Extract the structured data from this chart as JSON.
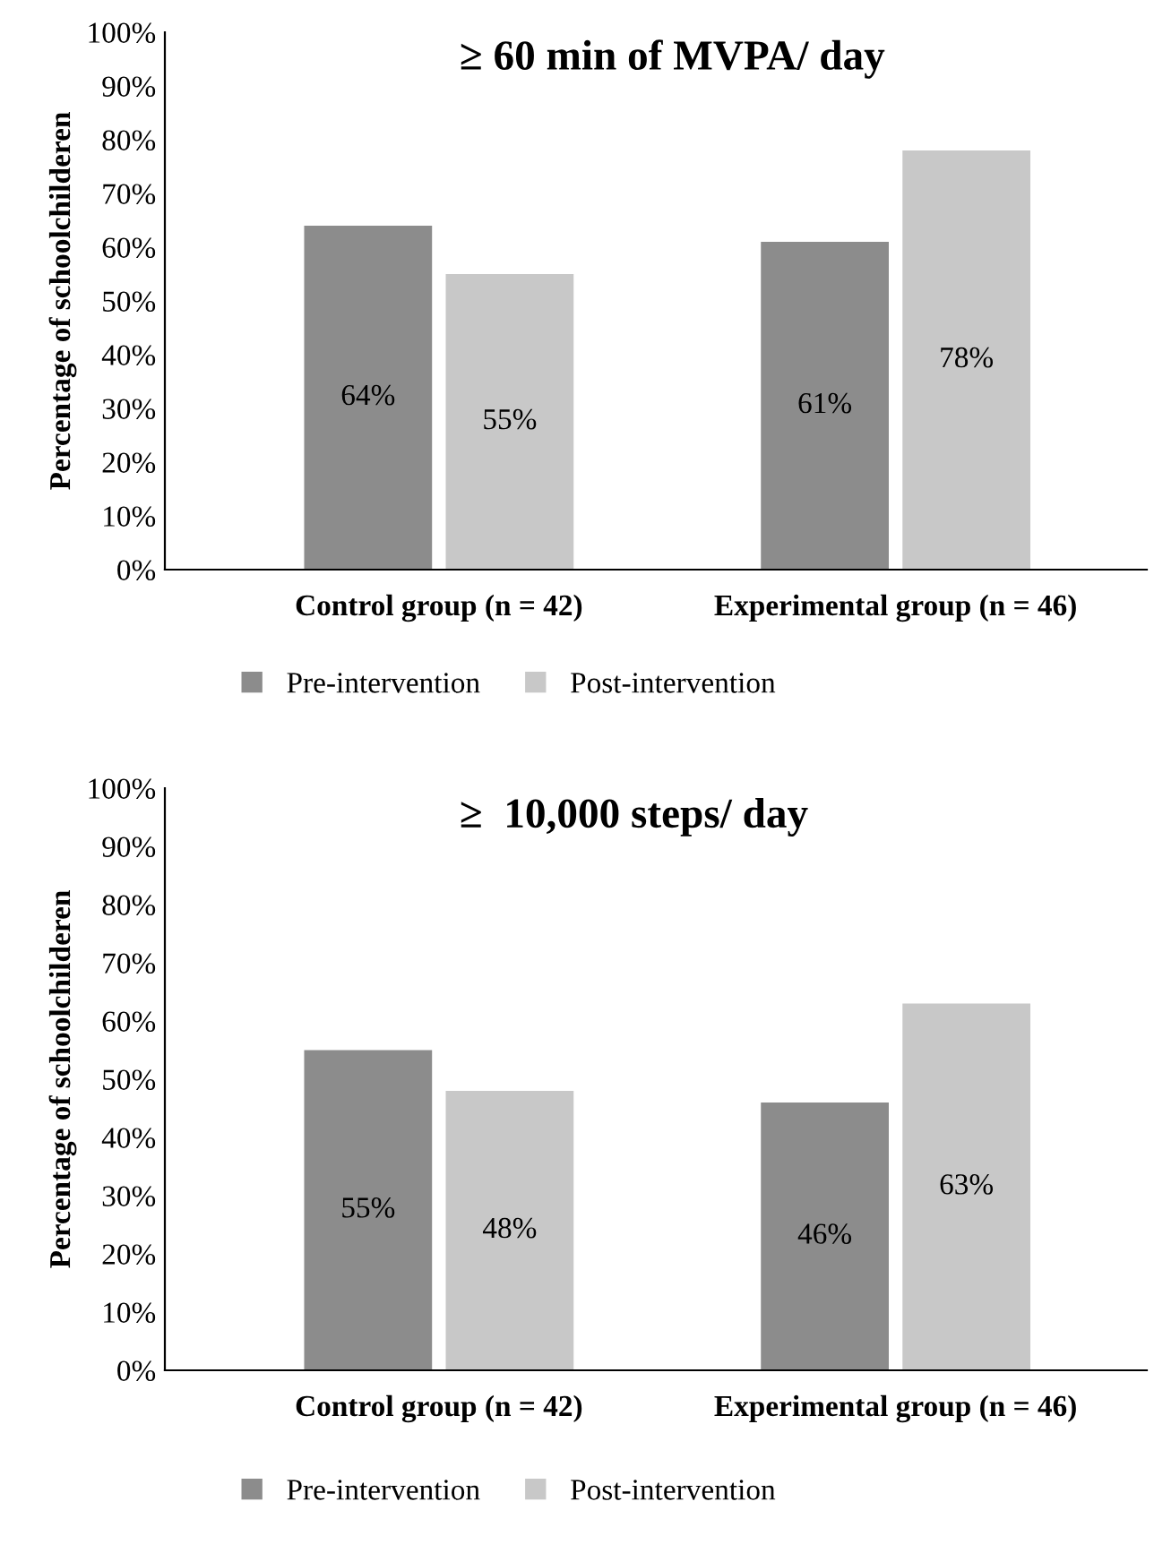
{
  "chart_data": [
    {
      "type": "bar",
      "title": "≥ 60 min of MVPA/ day",
      "ylabel": "Percentage of schoolchilderen",
      "categories": [
        "Control group (n = 42)",
        "Experimental group (n = 46)"
      ],
      "series": [
        {
          "name": "Pre-intervention",
          "color": "#8c8c8c",
          "values": [
            64,
            61
          ],
          "value_labels": [
            "64%",
            "61%"
          ]
        },
        {
          "name": "Post-intervention",
          "color": "#c8c8c8",
          "values": [
            55,
            78
          ],
          "value_labels": [
            "55%",
            "78%"
          ]
        }
      ],
      "ylim": [
        0,
        100
      ],
      "yticks": [
        {
          "value": 0,
          "label": "0%"
        },
        {
          "value": 10,
          "label": "10%"
        },
        {
          "value": 20,
          "label": "20%"
        },
        {
          "value": 30,
          "label": "30%"
        },
        {
          "value": 40,
          "label": "40%"
        },
        {
          "value": 50,
          "label": "50%"
        },
        {
          "value": 60,
          "label": "60%"
        },
        {
          "value": 70,
          "label": "70%"
        },
        {
          "value": 80,
          "label": "80%"
        },
        {
          "value": 90,
          "label": "90%"
        },
        {
          "value": 100,
          "label": "100%"
        }
      ],
      "grid": false,
      "legend": "bottom"
    },
    {
      "type": "bar",
      "title": "≥  10,000 steps/ day",
      "ylabel": "Percentage of schoolchilderen",
      "categories": [
        "Control group (n = 42)",
        "Experimental group (n = 46)"
      ],
      "series": [
        {
          "name": "Pre-intervention",
          "color": "#8c8c8c",
          "values": [
            55,
            46
          ],
          "value_labels": [
            "55%",
            "46%"
          ]
        },
        {
          "name": "Post-intervention",
          "color": "#c8c8c8",
          "values": [
            48,
            63
          ],
          "value_labels": [
            "48%",
            "63%"
          ]
        }
      ],
      "ylim": [
        0,
        100
      ],
      "yticks": [
        {
          "value": 0,
          "label": "0%"
        },
        {
          "value": 10,
          "label": "10%"
        },
        {
          "value": 20,
          "label": "20%"
        },
        {
          "value": 30,
          "label": "30%"
        },
        {
          "value": 40,
          "label": "40%"
        },
        {
          "value": 50,
          "label": "50%"
        },
        {
          "value": 60,
          "label": "60%"
        },
        {
          "value": 70,
          "label": "70%"
        },
        {
          "value": 80,
          "label": "80%"
        },
        {
          "value": 90,
          "label": "90%"
        },
        {
          "value": 100,
          "label": "100%"
        }
      ],
      "grid": false,
      "legend": "bottom"
    }
  ]
}
